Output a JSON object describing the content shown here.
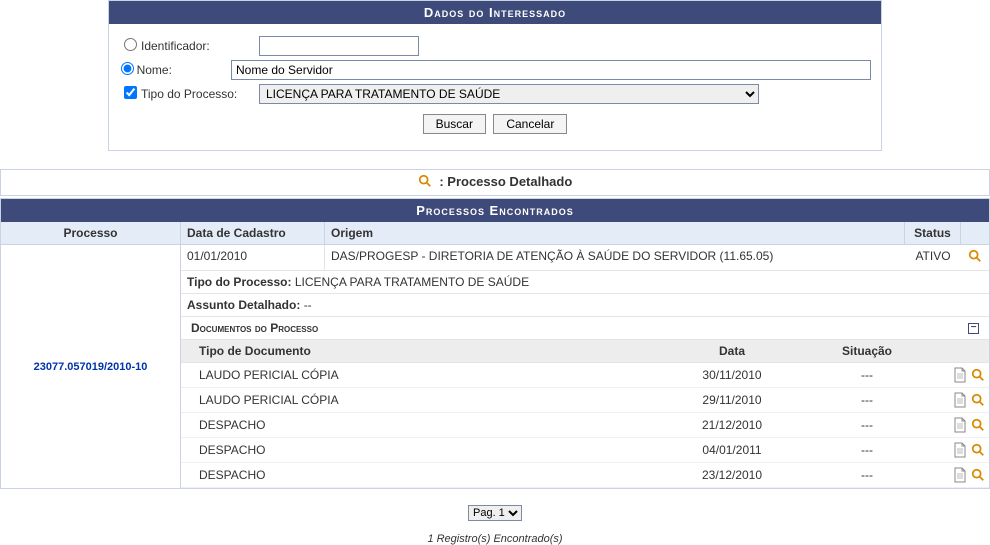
{
  "colors": {
    "header_bg": "#3d4a7a",
    "header_text": "#ffffff",
    "border": "#c9d3e4",
    "table_head_bg": "#e4ecf7",
    "docs_head_bg": "#ededed",
    "link": "#0033aa"
  },
  "form": {
    "title": "Dados do Interessado",
    "identificador_label": "Identificador:",
    "nome_label": "Nome:",
    "nome_value": "Nome do Servidor",
    "tipo_processo_label": "Tipo do Processo:",
    "tipo_processo_value": "LICENÇA PARA TRATAMENTO DE SAÚDE",
    "buscar_label": "Buscar",
    "cancelar_label": "Cancelar",
    "radio_selected": "nome",
    "tipo_checked": true
  },
  "legend": {
    "text": ": Processo Detalhado"
  },
  "processos": {
    "title": "Processos Encontrados",
    "columns": {
      "processo": "Processo",
      "cadastro": "Data de Cadastro",
      "origem": "Origem",
      "status": "Status"
    },
    "row": {
      "processo_num": "23077.057019/2010-10",
      "cadastro": "01/01/2010",
      "origem": "DAS/PROGESP - DIRETORIA DE ATENÇÃO À SAÚDE DO SERVIDOR (11.65.05)",
      "status": "ATIVO",
      "tipo_label": "Tipo do Processo:",
      "tipo_value": "LICENÇA PARA TRATAMENTO DE SAÚDE",
      "assunto_label": "Assunto Detalhado:",
      "assunto_value": "--"
    }
  },
  "documentos": {
    "title": "Documentos do Processo",
    "columns": {
      "tipo": "Tipo de Documento",
      "data": "Data",
      "situacao": "Situação"
    },
    "rows": [
      {
        "tipo": "LAUDO PERICIAL CÓPIA",
        "data": "30/11/2010",
        "situacao": "---"
      },
      {
        "tipo": "LAUDO PERICIAL CÓPIA",
        "data": "29/11/2010",
        "situacao": "---"
      },
      {
        "tipo": "DESPACHO",
        "data": "21/12/2010",
        "situacao": "---"
      },
      {
        "tipo": "DESPACHO",
        "data": "04/01/2011",
        "situacao": "---"
      },
      {
        "tipo": "DESPACHO",
        "data": "23/12/2010",
        "situacao": "---"
      }
    ]
  },
  "pagination": {
    "label": "Pag. 1"
  },
  "footer": {
    "count_text": "1 Registro(s) Encontrado(s)"
  }
}
